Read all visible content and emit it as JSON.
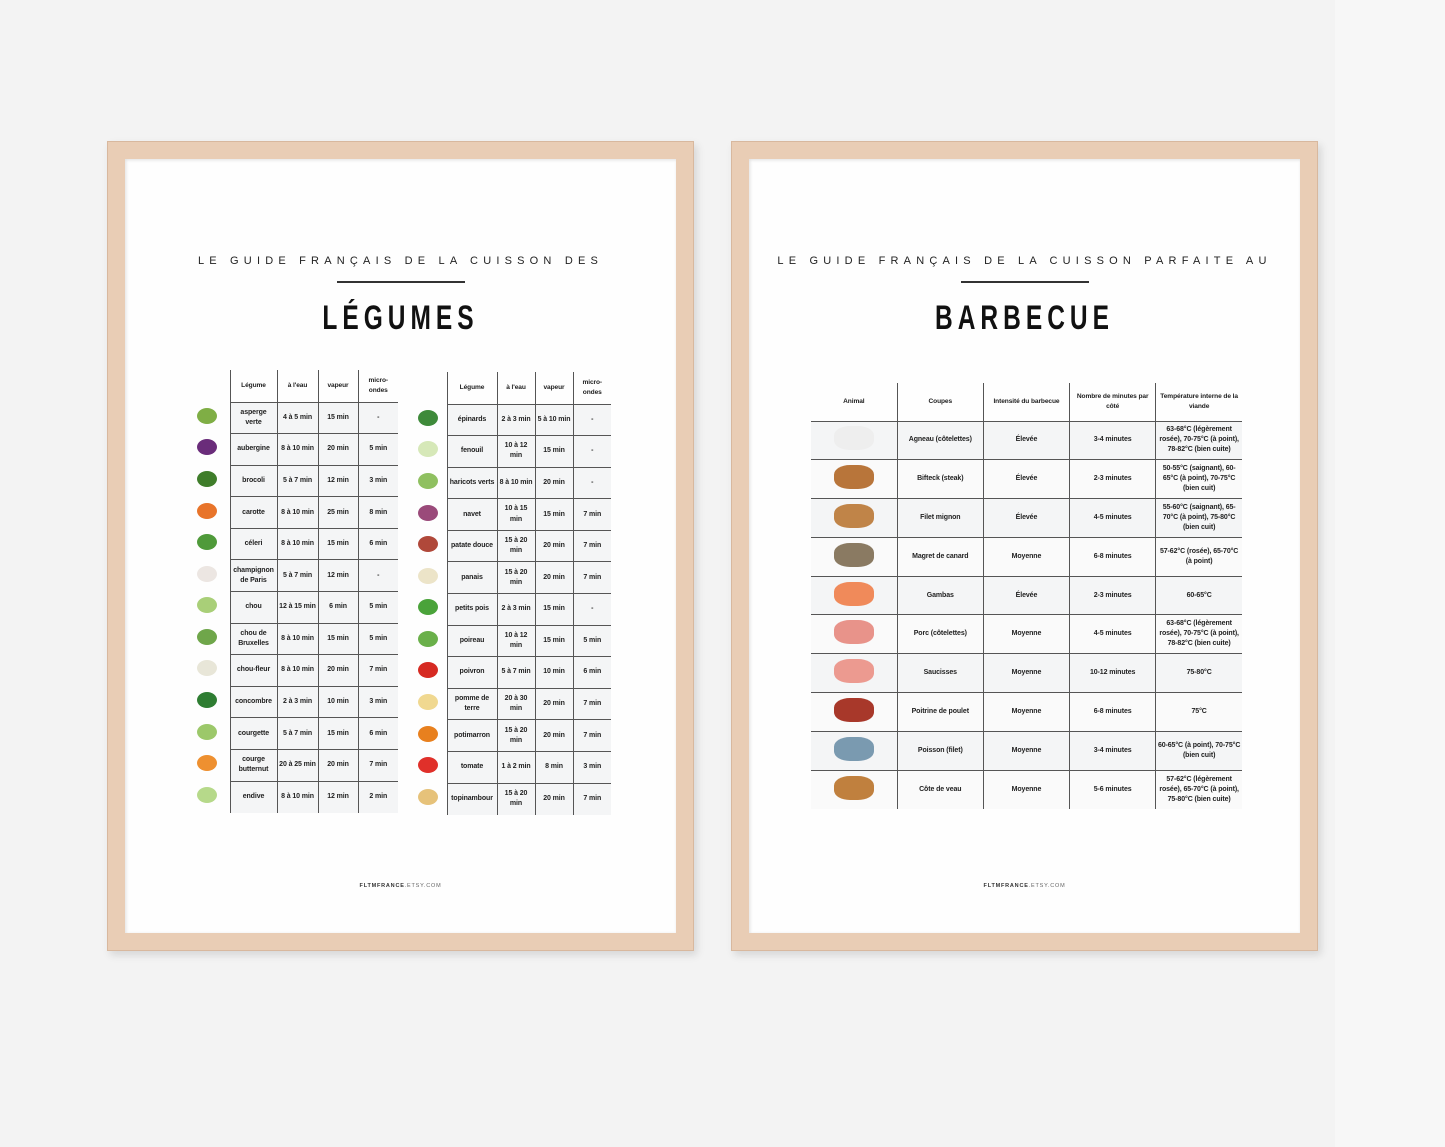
{
  "left_poster": {
    "kicker": "LE GUIDE FRANÇAIS DE LA CUISSON DES",
    "title": "LÉGUMES",
    "footer_brand": "FLTMFRANCE",
    "footer_domain": ".ETSY.COM",
    "headers": [
      "Légume",
      "à l'eau",
      "vapeur",
      "micro-ondes"
    ],
    "table1": [
      {
        "icon": "asparagus-icon",
        "color": "#7fae45",
        "name": "asperge verte",
        "eau": "4 à 5 min",
        "vapeur": "15 min",
        "micro": "-"
      },
      {
        "icon": "eggplant-icon",
        "color": "#6a2c7a",
        "name": "aubergine",
        "eau": "8 à 10 min",
        "vapeur": "20 min",
        "micro": "5 min"
      },
      {
        "icon": "broccoli-icon",
        "color": "#3f7d2a",
        "name": "brocoli",
        "eau": "5 à 7 min",
        "vapeur": "12 min",
        "micro": "3 min"
      },
      {
        "icon": "carrot-icon",
        "color": "#e8742a",
        "name": "carotte",
        "eau": "8 à 10 min",
        "vapeur": "25 min",
        "micro": "8 min"
      },
      {
        "icon": "celery-icon",
        "color": "#4f9a3a",
        "name": "céleri",
        "eau": "8 à 10 min",
        "vapeur": "15 min",
        "micro": "6 min"
      },
      {
        "icon": "mushroom-icon",
        "color": "#ece6e2",
        "name": "champignon de Paris",
        "eau": "5 à 7 min",
        "vapeur": "12 min",
        "micro": "-"
      },
      {
        "icon": "cabbage-icon",
        "color": "#a9cf78",
        "name": "chou",
        "eau": "12 à 15 min",
        "vapeur": "6 min",
        "micro": "5 min"
      },
      {
        "icon": "brussels-sprouts-icon",
        "color": "#6fa64a",
        "name": "chou de Bruxelles",
        "eau": "8 à 10 min",
        "vapeur": "15 min",
        "micro": "5 min"
      },
      {
        "icon": "cauliflower-icon",
        "color": "#e8e6d8",
        "name": "chou-fleur",
        "eau": "8 à 10 min",
        "vapeur": "20 min",
        "micro": "7 min"
      },
      {
        "icon": "cucumber-icon",
        "color": "#2e7d32",
        "name": "concombre",
        "eau": "2 à 3 min",
        "vapeur": "10 min",
        "micro": "3 min"
      },
      {
        "icon": "zucchini-icon",
        "color": "#9cc86a",
        "name": "courgette",
        "eau": "5 à 7 min",
        "vapeur": "15 min",
        "micro": "6 min"
      },
      {
        "icon": "butternut-icon",
        "color": "#ee9030",
        "name": "courge butternut",
        "eau": "20 à 25 min",
        "vapeur": "20 min",
        "micro": "7 min"
      },
      {
        "icon": "endive-icon",
        "color": "#b6d98a",
        "name": "endive",
        "eau": "8 à 10 min",
        "vapeur": "12 min",
        "micro": "2 min"
      }
    ],
    "table2": [
      {
        "icon": "spinach-icon",
        "color": "#3e8a3a",
        "name": "épinards",
        "eau": "2 à 3 min",
        "vapeur": "5 à 10 min",
        "micro": "-"
      },
      {
        "icon": "fennel-icon",
        "color": "#d6e8b8",
        "name": "fenouil",
        "eau": "10 à 12 min",
        "vapeur": "15 min",
        "micro": "-"
      },
      {
        "icon": "green-beans-icon",
        "color": "#8fc060",
        "name": "haricots verts",
        "eau": "8 à 10 min",
        "vapeur": "20 min",
        "micro": "-"
      },
      {
        "icon": "turnip-icon",
        "color": "#9a4a7a",
        "name": "navet",
        "eau": "10 à 15 min",
        "vapeur": "15 min",
        "micro": "7 min"
      },
      {
        "icon": "sweet-potato-icon",
        "color": "#b0483a",
        "name": "patate douce",
        "eau": "15 à 20 min",
        "vapeur": "20 min",
        "micro": "7 min"
      },
      {
        "icon": "parsnip-icon",
        "color": "#ece4c8",
        "name": "panais",
        "eau": "15 à 20 min",
        "vapeur": "20 min",
        "micro": "7 min"
      },
      {
        "icon": "peas-icon",
        "color": "#4aa33a",
        "name": "petits pois",
        "eau": "2 à 3 min",
        "vapeur": "15 min",
        "micro": "-"
      },
      {
        "icon": "leek-icon",
        "color": "#6ab04a",
        "name": "poireau",
        "eau": "10 à 12 min",
        "vapeur": "15 min",
        "micro": "5 min"
      },
      {
        "icon": "bell-pepper-icon",
        "color": "#d62a22",
        "name": "poivron",
        "eau": "5 à 7 min",
        "vapeur": "10 min",
        "micro": "6 min"
      },
      {
        "icon": "potato-icon",
        "color": "#f0d890",
        "name": "pomme de terre",
        "eau": "20 à 30 min",
        "vapeur": "20 min",
        "micro": "7 min"
      },
      {
        "icon": "pumpkin-icon",
        "color": "#e8801e",
        "name": "potimarron",
        "eau": "15 à 20 min",
        "vapeur": "20 min",
        "micro": "7 min"
      },
      {
        "icon": "tomato-icon",
        "color": "#e0302a",
        "name": "tomate",
        "eau": "1 à 2 min",
        "vapeur": "8 min",
        "micro": "3 min"
      },
      {
        "icon": "jerusalem-artichoke-icon",
        "color": "#e6c27a",
        "name": "topinambour",
        "eau": "15 à 20 min",
        "vapeur": "20 min",
        "micro": "7 min"
      }
    ]
  },
  "right_poster": {
    "kicker": "LE GUIDE FRANÇAIS DE LA CUISSON PARFAITE AU",
    "title": "BARBECUE",
    "footer_brand": "FLTMFRANCE",
    "footer_domain": ".ETSY.COM",
    "headers": [
      "Animal",
      "Coupes",
      "Intensité du barbecue",
      "Nombre de minutes par côté",
      "Température interne de la viande"
    ],
    "rows": [
      {
        "icon": "lamb-icon",
        "color": "#eeeeee",
        "cut": "Agneau (côtelettes)",
        "intensity": "Élevée",
        "minutes": "3-4 minutes",
        "temp": "63-68°C (légèrement rosée), 70-75°C (à point), 78-82°C (bien cuite)"
      },
      {
        "icon": "cow-icon",
        "color": "#b8753a",
        "cut": "Bifteck (steak)",
        "intensity": "Élevée",
        "minutes": "2-3 minutes",
        "temp": "50-55°C (saignant), 60-65°C (à point), 70-75°C (bien cuit)"
      },
      {
        "icon": "cow-icon",
        "color": "#c08448",
        "cut": "Filet mignon",
        "intensity": "Élevée",
        "minutes": "4-5 minutes",
        "temp": "55-60°C (saignant), 65-70°C (à point), 75-80°C (bien cuit)"
      },
      {
        "icon": "duck-icon",
        "color": "#8a7a62",
        "cut": "Magret de canard",
        "intensity": "Moyenne",
        "minutes": "6-8 minutes",
        "temp": "57-62°C (rosée), 65-70°C (à point)"
      },
      {
        "icon": "shrimp-icon",
        "color": "#f08a5a",
        "cut": "Gambas",
        "intensity": "Élevée",
        "minutes": "2-3 minutes",
        "temp": "60-65°C"
      },
      {
        "icon": "pig-icon",
        "color": "#e8938a",
        "cut": "Porc (côtelettes)",
        "intensity": "Moyenne",
        "minutes": "4-5 minutes",
        "temp": "63-68°C (légèrement rosée), 70-75°C (à point), 78-82°C (bien cuite)"
      },
      {
        "icon": "pig-icon",
        "color": "#ec9a90",
        "cut": "Saucisses",
        "intensity": "Moyenne",
        "minutes": "10-12 minutes",
        "temp": "75-80°C"
      },
      {
        "icon": "chicken-icon",
        "color": "#a8382a",
        "cut": "Poitrine de poulet",
        "intensity": "Moyenne",
        "minutes": "6-8 minutes",
        "temp": "75°C"
      },
      {
        "icon": "fish-icon",
        "color": "#7a9ab0",
        "cut": "Poisson (filet)",
        "intensity": "Moyenne",
        "minutes": "3-4 minutes",
        "temp": "60-65°C (à point), 70-75°C (bien cuit)"
      },
      {
        "icon": "calf-icon",
        "color": "#c0803e",
        "cut": "Côte de veau",
        "intensity": "Moyenne",
        "minutes": "5-6 minutes",
        "temp": "57-62°C (légèrement rosée), 65-70°C (à point), 75-80°C (bien cuite)"
      }
    ]
  }
}
